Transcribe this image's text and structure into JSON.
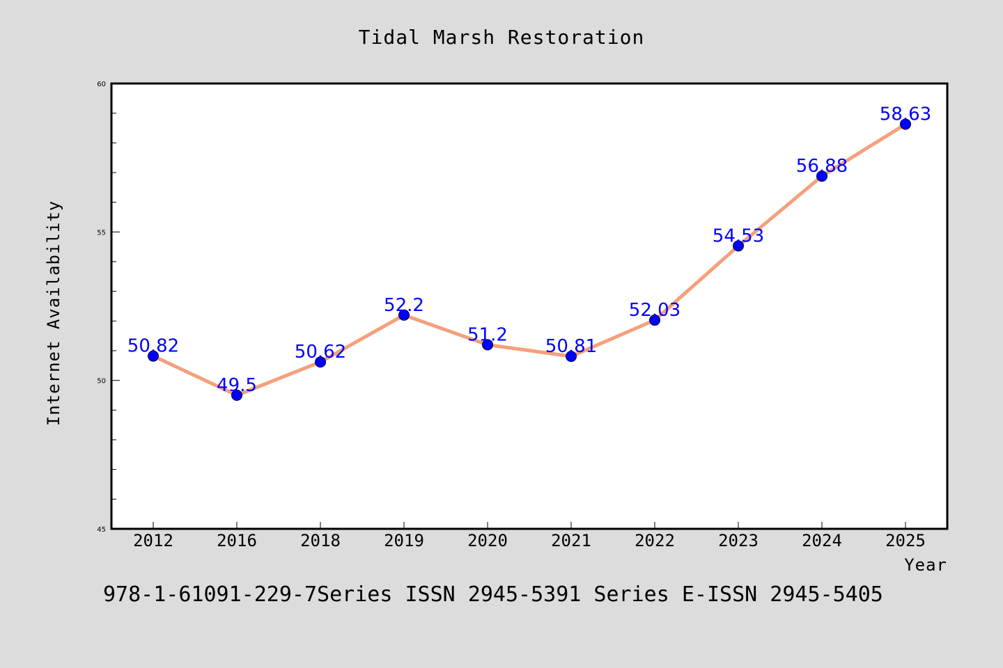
{
  "chart_data": {
    "type": "line",
    "title": "Tidal Marsh Restoration",
    "xlabel": "Year",
    "ylabel": "Internet Availability",
    "categories": [
      "2012",
      "2016",
      "2018",
      "2019",
      "2020",
      "2021",
      "2022",
      "2023",
      "2024",
      "2025"
    ],
    "values": [
      50.82,
      49.5,
      50.62,
      52.2,
      51.2,
      50.81,
      52.03,
      54.53,
      56.88,
      58.63
    ],
    "data_labels": [
      "50.82",
      "49.5",
      "50.62",
      "52.2",
      "51.2",
      "50.81",
      "52.03",
      "54.53",
      "56.88",
      "58.63"
    ],
    "ylim": [
      45,
      60
    ],
    "yticks": [
      45,
      50,
      55,
      60
    ],
    "yticks_minor": [
      46,
      47,
      48,
      49,
      51,
      52,
      53,
      54,
      56,
      57,
      58,
      59
    ],
    "grid": false,
    "line_color": "#f4a07c",
    "marker_color": "#0000ff",
    "label_color": "#0000ff",
    "background_color": "#dcdcdc",
    "plot_background_color": "#ffffff"
  },
  "footer": {
    "text": "978-1-61091-229-7Series ISSN 2945-5391 Series E-ISSN 2945-5405"
  }
}
